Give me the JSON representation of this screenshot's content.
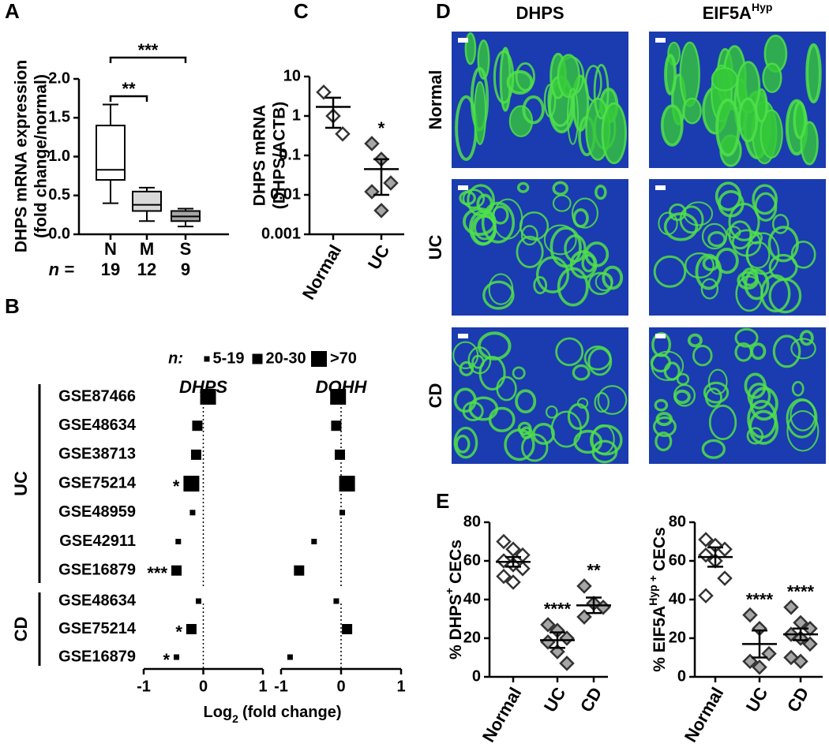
{
  "panel_labels": [
    "A",
    "B",
    "C",
    "D",
    "E"
  ],
  "chart_data": [
    {
      "type": "box",
      "ylabel": [
        "DHPS mRNA expression",
        "(fold change/normal)"
      ],
      "categories": [
        "N",
        "M",
        "S"
      ],
      "n_label": "n =",
      "n": [
        19,
        12,
        9
      ],
      "boxes": [
        {
          "min": 0.4,
          "q1": 0.7,
          "median": 0.83,
          "q3": 1.4,
          "max": 1.67
        },
        {
          "min": 0.17,
          "q1": 0.3,
          "median": 0.38,
          "q3": 0.55,
          "max": 0.6
        },
        {
          "min": 0.1,
          "q1": 0.17,
          "median": 0.23,
          "q3": 0.3,
          "max": 0.33
        }
      ],
      "colors": [
        "#ffffff",
        "#d9d9d9",
        "#a6a6a6"
      ],
      "ylim": [
        0,
        2
      ],
      "yticks": [
        {
          "value": 0,
          "label": "0.0"
        },
        0.5,
        {
          "value": 1,
          "label": "1.0"
        },
        1.5,
        {
          "value": 2,
          "label": "2.0"
        }
      ],
      "significance": [
        {
          "groups": [
            "N",
            "M"
          ],
          "label": "**"
        },
        {
          "groups": [
            "N",
            "S"
          ],
          "label": "***"
        }
      ]
    },
    {
      "type": "dot",
      "legend_title": "n:",
      "size_groups": [
        "5-19",
        "20-30",
        ">70"
      ],
      "color": "#000000",
      "row_groups": [
        {
          "name": "UC",
          "categories": [
            "GSE87466",
            "GSE48634",
            "GSE38713",
            "GSE75214",
            "GSE48959",
            "GSE42911",
            "GSE16879"
          ]
        },
        {
          "name": "CD",
          "categories": [
            "GSE48634",
            "GSE75214",
            "GSE16879"
          ]
        }
      ],
      "panels": [
        {
          "title": "DHPS",
          "values": [
            [
              0.08,
              -0.1,
              -0.12,
              -0.2,
              -0.18,
              -0.42,
              -0.45
            ],
            [
              -0.08,
              -0.2,
              -0.45
            ]
          ],
          "n_group": [
            [
              ">70",
              "20-30",
              "20-30",
              ">70",
              "5-19",
              "5-19",
              "20-30"
            ],
            [
              "5-19",
              "20-30",
              "5-19"
            ]
          ],
          "annotations": [
            [
              null,
              null,
              null,
              "*",
              null,
              null,
              "***"
            ],
            [
              null,
              "*",
              "*"
            ]
          ]
        },
        {
          "title": "DOHH",
          "values": [
            [
              -0.05,
              -0.08,
              -0.02,
              0.1,
              0.02,
              -0.45,
              -0.7
            ],
            [
              -0.08,
              0.1,
              -0.85
            ]
          ],
          "n_group": [
            [
              ">70",
              "20-30",
              "20-30",
              ">70",
              "5-19",
              "5-19",
              "20-30"
            ],
            [
              "5-19",
              "20-30",
              "5-19"
            ]
          ],
          "annotations": [
            [
              null,
              null,
              null,
              null,
              null,
              null,
              null
            ],
            [
              null,
              null,
              null
            ]
          ]
        }
      ],
      "xlim": [
        -1,
        1
      ],
      "xticks": [
        -1,
        0,
        1
      ],
      "xlabel": "Log",
      "xlabel_sub": "2",
      "xlabel_rest": "(fold change)"
    },
    {
      "type": "scatter",
      "yscale": "log",
      "ylabel": [
        "DHPS mRNA",
        "(DHPS/ACTB)"
      ],
      "categories": [
        "Normal",
        "UC"
      ],
      "points": [
        [
          4,
          1,
          0.35
        ],
        [
          0.2,
          0.08,
          0.02,
          0.012,
          0.004
        ]
      ],
      "means": [
        1.7,
        0.045
      ],
      "errors": [
        1.2,
        0.035
      ],
      "fills": [
        "#ffffff",
        "#a6a6a6"
      ],
      "annotations": [
        null,
        "*"
      ],
      "ylim": [
        0.001,
        10
      ],
      "yticks": [
        0.001,
        0.01,
        0.1,
        1,
        10
      ]
    },
    {
      "type": "scatter",
      "ylabel": {
        "text": "% DHPS",
        "sup": "+",
        "rest": "CECs"
      },
      "categories": [
        "Normal",
        "UC",
        "CD"
      ],
      "points": [
        [
          70,
          66,
          63,
          60,
          58,
          56,
          52,
          49
        ],
        [
          27,
          24,
          20,
          18,
          13,
          7
        ],
        [
          47,
          38,
          36,
          31
        ]
      ],
      "means": [
        59.5,
        19,
        37
      ],
      "errors": [
        2.5,
        4,
        4
      ],
      "fills": [
        "#ffffff",
        "#a6a6a6",
        "#a6a6a6"
      ],
      "annotations": [
        null,
        "****",
        "**"
      ],
      "ylim": [
        0,
        80
      ],
      "yticks": [
        0,
        20,
        40,
        60,
        80
      ]
    },
    {
      "type": "scatter",
      "ylabel": {
        "text": "% EIF5A",
        "sup": "Hyp +",
        "rest": "CECs"
      },
      "categories": [
        "Normal",
        "UC",
        "CD"
      ],
      "points": [
        [
          71,
          68,
          66,
          63,
          60,
          51,
          42
        ],
        [
          32,
          25,
          12,
          8,
          5
        ],
        [
          36,
          28,
          25,
          22,
          20,
          17,
          10,
          8
        ]
      ],
      "means": [
        62,
        17,
        22
      ],
      "errors": [
        5,
        7,
        3
      ],
      "fills": [
        "#ffffff",
        "#a6a6a6",
        "#a6a6a6"
      ],
      "annotations": [
        null,
        "****",
        "****"
      ],
      "ylim": [
        0,
        80
      ],
      "yticks": [
        0,
        20,
        40,
        60,
        80
      ]
    }
  ],
  "image_panel": {
    "columns": [
      {
        "text": "DHPS"
      },
      {
        "text": "EIF5A",
        "sup": "Hyp"
      }
    ],
    "rows": [
      "Normal",
      "UC",
      "CD"
    ]
  }
}
